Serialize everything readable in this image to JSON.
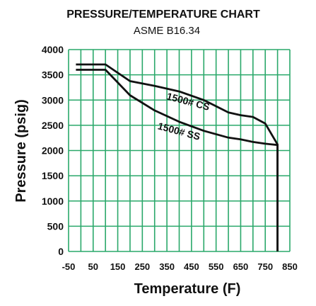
{
  "chart_data": {
    "type": "line",
    "title": "PRESSURE/TEMPERATURE CHART",
    "subtitle": "ASME B16.34",
    "xlabel": "Temperature (F)",
    "ylabel": "Pressure (psig)",
    "xlim": [
      -50,
      850
    ],
    "ylim": [
      0,
      4000
    ],
    "x_ticks": [
      -50,
      50,
      150,
      250,
      350,
      450,
      550,
      650,
      750,
      850
    ],
    "x_tick_labels": [
      "-50",
      "50",
      "150",
      "250",
      "350",
      "450",
      "550",
      "650",
      "750",
      "850"
    ],
    "y_ticks": [
      0,
      500,
      1000,
      1500,
      2000,
      2500,
      3000,
      3500,
      4000
    ],
    "y_tick_labels": [
      "0",
      "500",
      "1000",
      "1500",
      "2000",
      "2500",
      "3000",
      "3500",
      "4000"
    ],
    "x_grid_step": 50,
    "grid": true,
    "legend": "none",
    "series": [
      {
        "name": "1500# CS",
        "x": [
          -20,
          100,
          200,
          300,
          400,
          500,
          600,
          650,
          700,
          750,
          800,
          800
        ],
        "y": [
          3705,
          3705,
          3375,
          3280,
          3170,
          3000,
          2755,
          2700,
          2665,
          2535,
          2120,
          0
        ]
      },
      {
        "name": "1500# SS",
        "x": [
          -20,
          100,
          200,
          300,
          400,
          500,
          600,
          650,
          700,
          750,
          800,
          800
        ],
        "y": [
          3600,
          3600,
          3095,
          2795,
          2570,
          2390,
          2255,
          2220,
          2170,
          2135,
          2110,
          0
        ]
      }
    ],
    "series_label_angle": 15,
    "colors": {
      "grid": "#2aa86a",
      "line": "#111111",
      "text": "#111111",
      "background": "#ffffff"
    }
  }
}
